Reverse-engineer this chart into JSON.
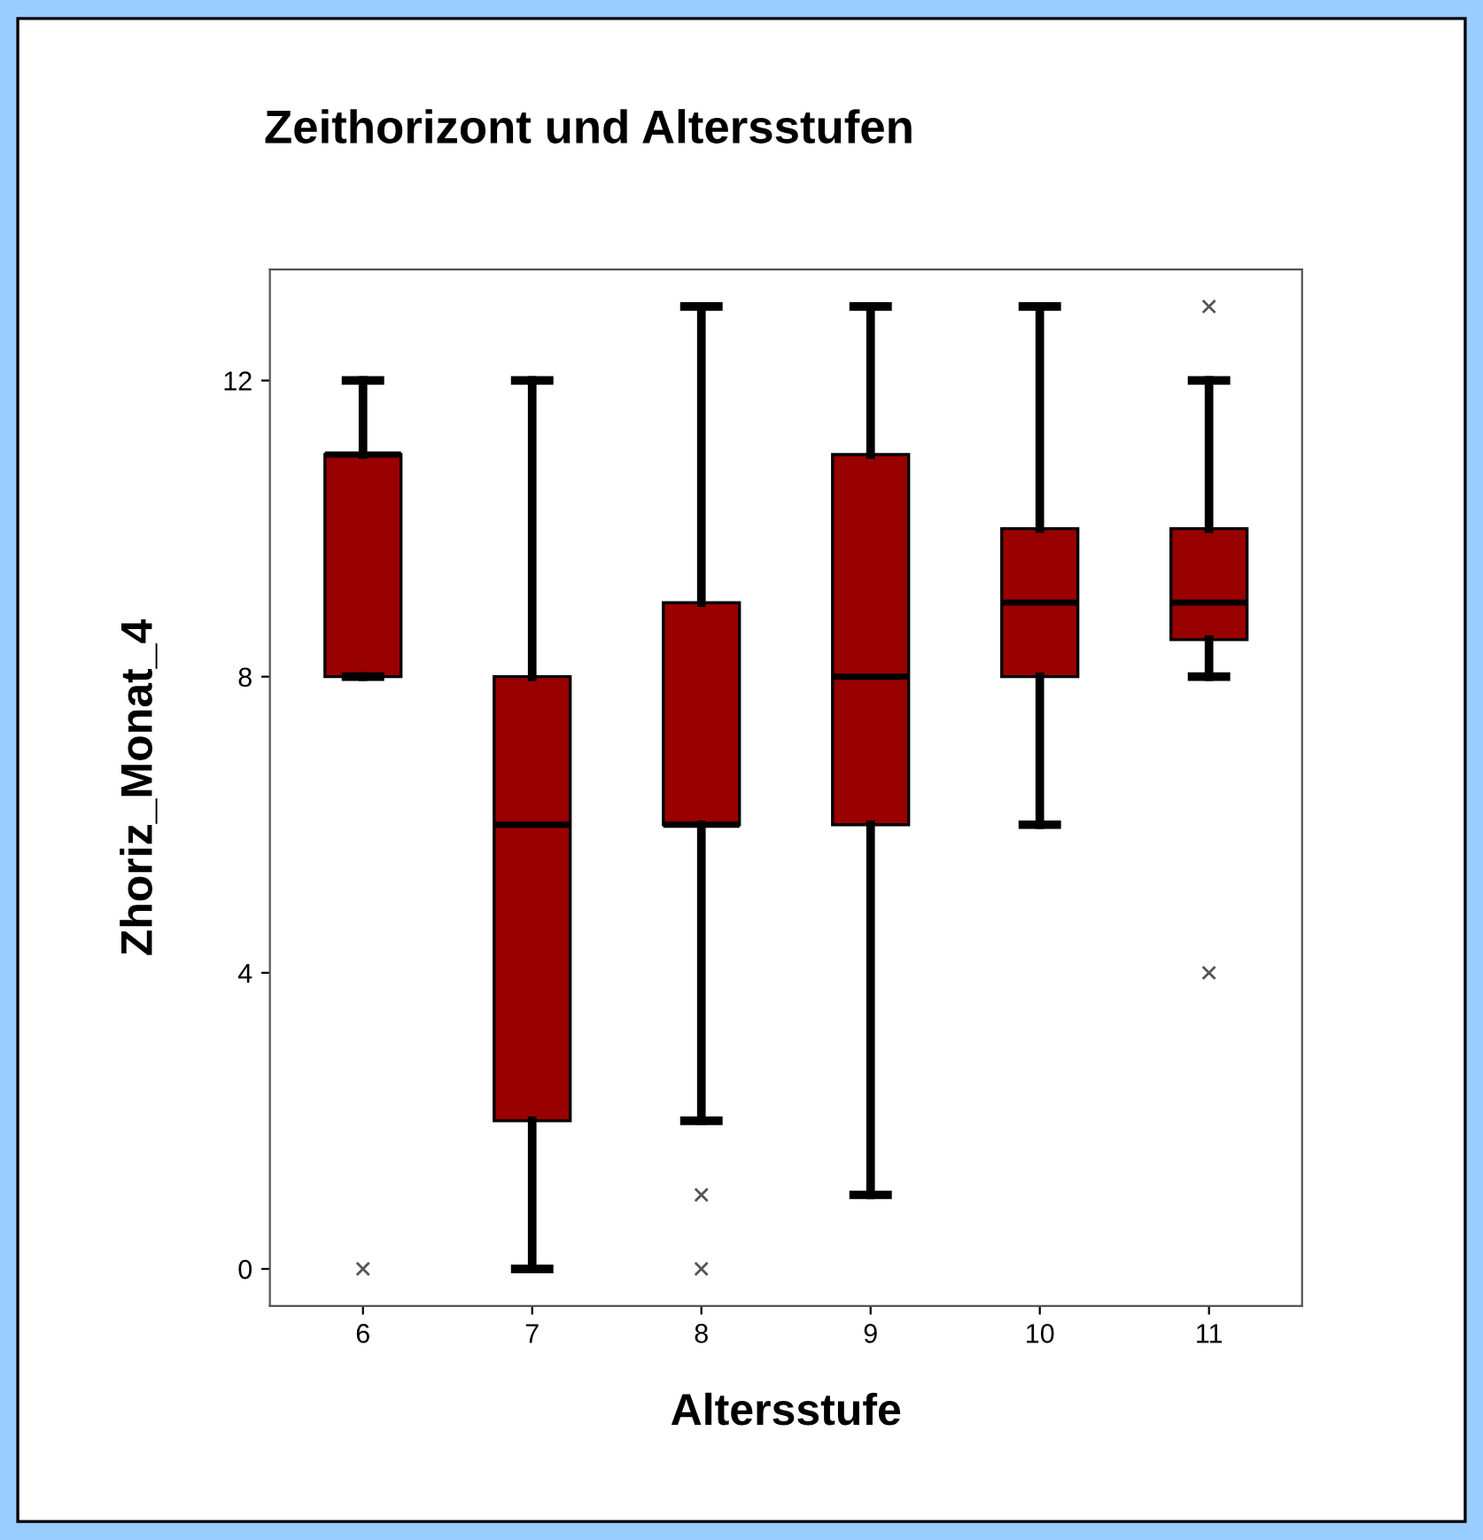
{
  "chart_data": {
    "type": "box",
    "title": "Zeithorizont und Altersstufen",
    "xlabel": "Altersstufe",
    "ylabel": "Zhoriz_Monat_4",
    "categories": [
      "6",
      "7",
      "8",
      "9",
      "10",
      "11"
    ],
    "series": [
      {
        "color": "#990000",
        "boxes": [
          {
            "low": 8,
            "q1": 8,
            "median": 11,
            "q3": 11,
            "high": 12,
            "outliers": [
              0
            ]
          },
          {
            "low": 0,
            "q1": 2,
            "median": 6,
            "q3": 8,
            "high": 12
          },
          {
            "low": 2,
            "q1": 6,
            "median": 6,
            "q3": 9,
            "high": 13,
            "outliers": [
              1,
              0
            ]
          },
          {
            "low": 1,
            "q1": 6,
            "median": 8,
            "q3": 11,
            "high": 13
          },
          {
            "low": 6,
            "q1": 8,
            "median": 9,
            "q3": 10,
            "high": 13
          },
          {
            "low": 8,
            "q1": 8.5,
            "median": 9,
            "q3": 10,
            "high": 12,
            "outliers": [
              13,
              4
            ]
          }
        ]
      }
    ],
    "ylim": [
      -0.5,
      13.5
    ],
    "yticks": [
      0,
      4,
      8,
      12
    ],
    "grid": false,
    "legend": false
  }
}
